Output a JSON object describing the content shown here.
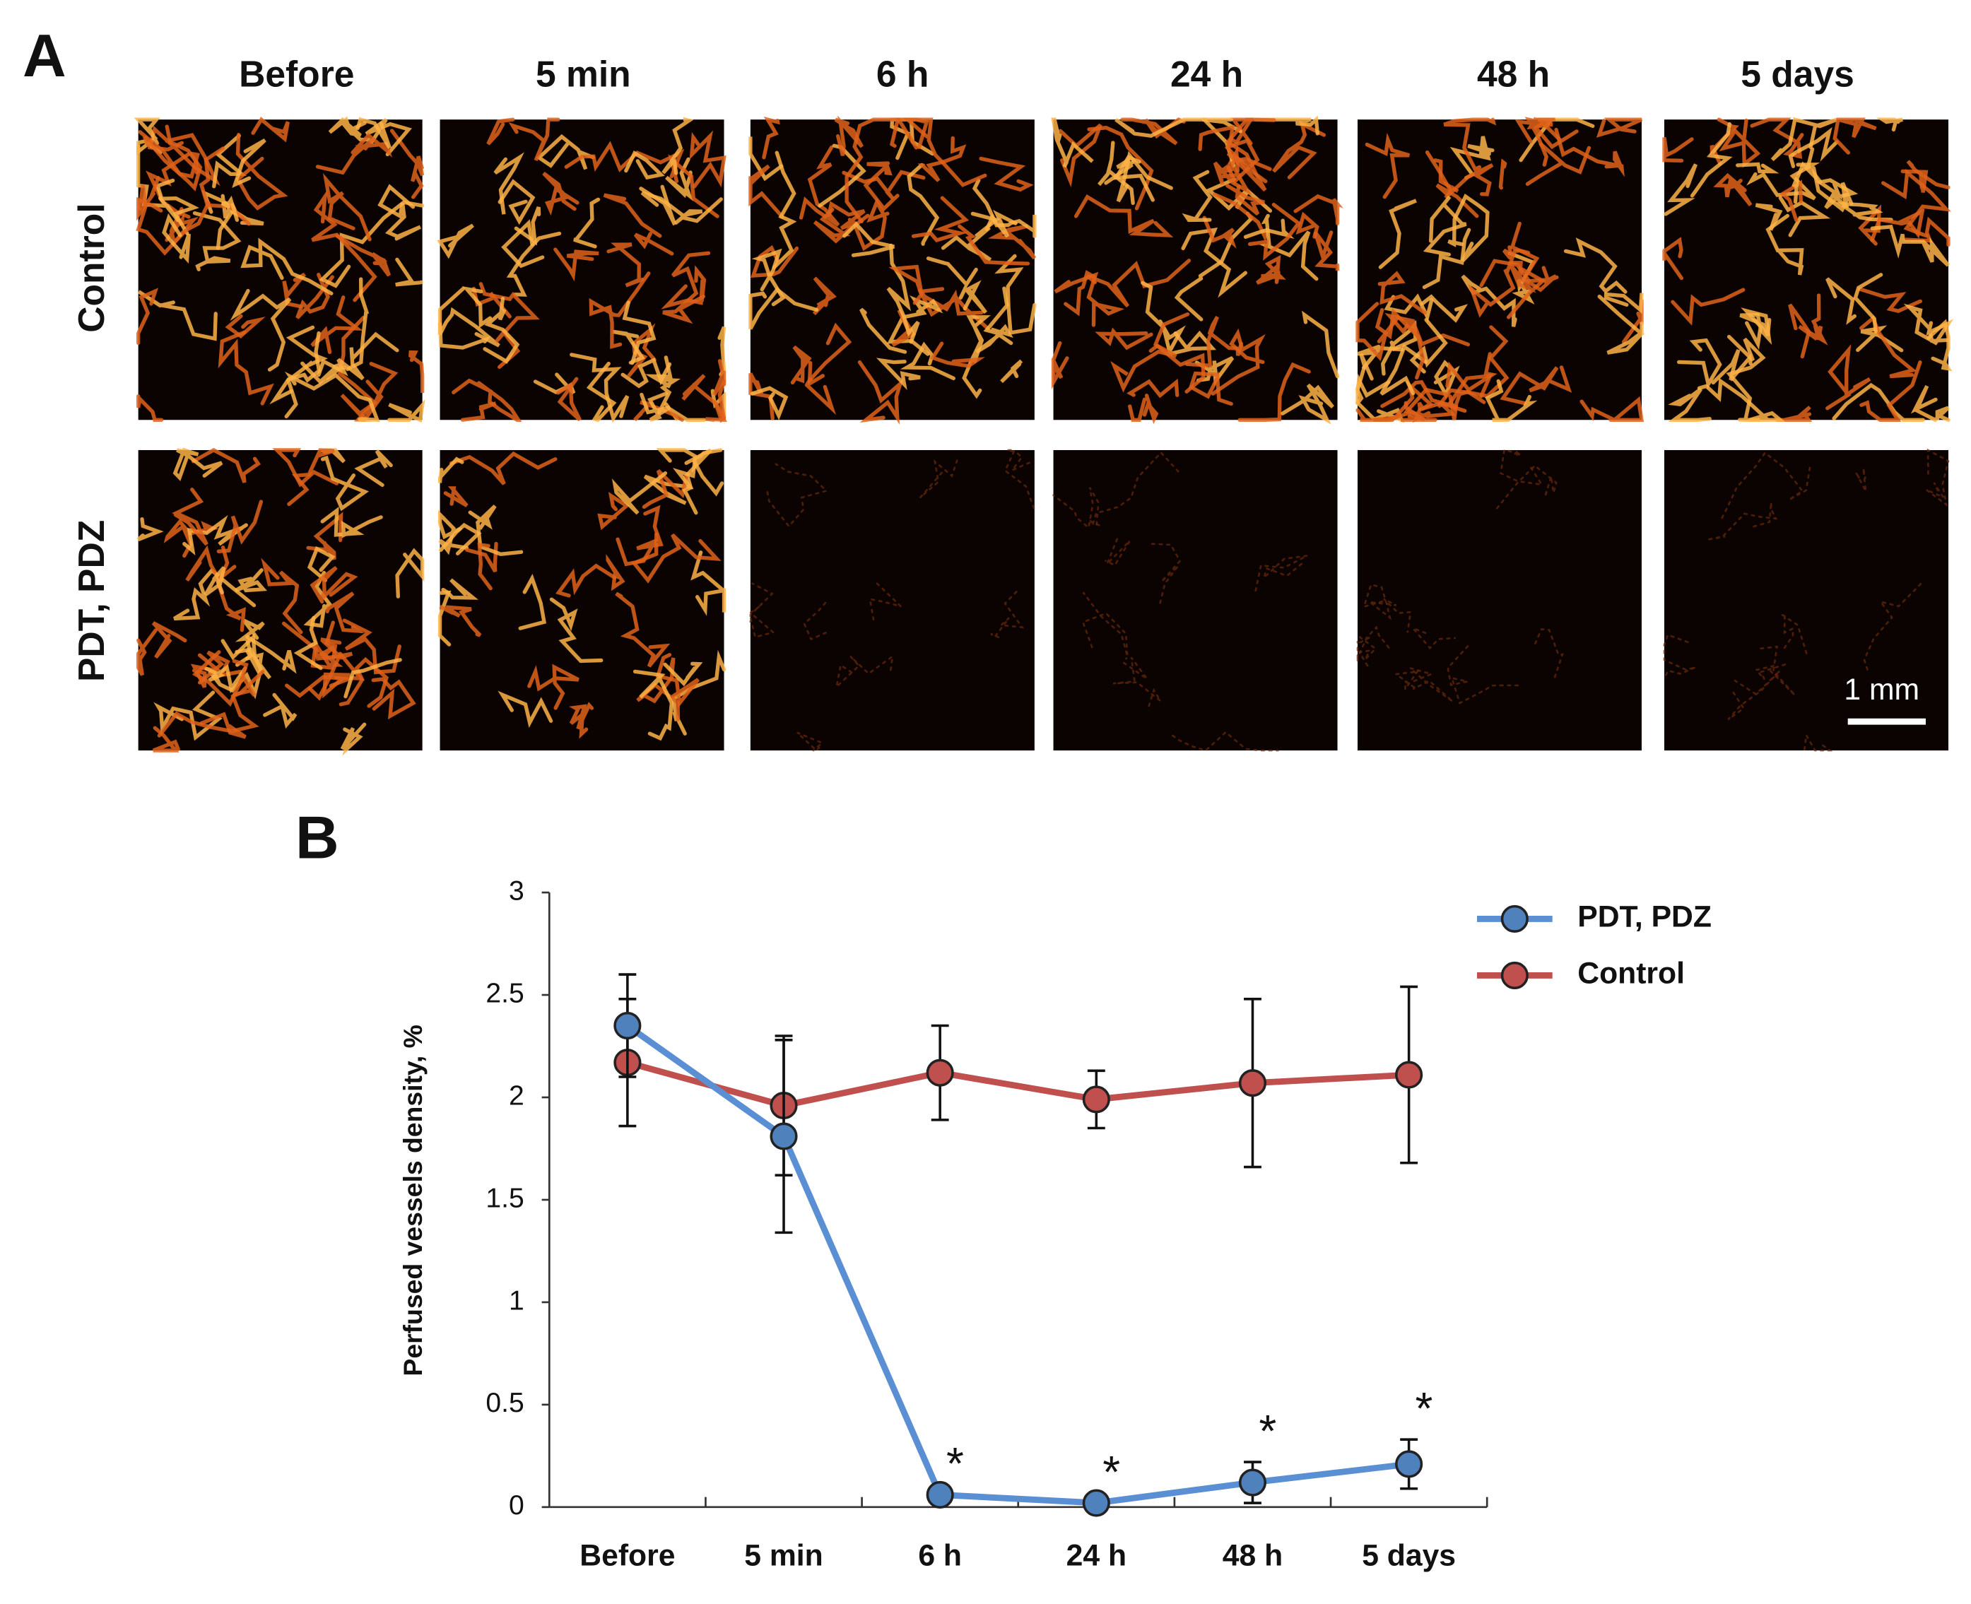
{
  "panel_a": {
    "label": "A",
    "columns": [
      "Before",
      "5 min",
      "6 h",
      "24 h",
      "48 h",
      "5 days"
    ],
    "rows": [
      "Control",
      "PDT, PDZ"
    ],
    "scale_bar": "1 mm"
  },
  "chart_data": {
    "type": "line",
    "panel_label": "B",
    "y_label": "Perfused vessels density,  %",
    "categories": [
      "Before",
      "5 min",
      "6 h",
      "24 h",
      "48 h",
      "5 days"
    ],
    "series": [
      {
        "name": "PDT, PDZ",
        "color": "#5b8fd3",
        "marker_color": "#4f81bd",
        "values": [
          2.35,
          1.81,
          0.06,
          0.02,
          0.12,
          0.21
        ],
        "errors": [
          0.25,
          0.47,
          null,
          null,
          0.1,
          0.12
        ],
        "annotations": [
          null,
          null,
          "*",
          "*",
          "*",
          "*"
        ]
      },
      {
        "name": "Control",
        "color": "#c0504d",
        "marker_color": "#c0504d",
        "values": [
          2.17,
          1.96,
          2.12,
          1.99,
          2.07,
          2.11
        ],
        "errors": [
          0.31,
          0.34,
          0.23,
          0.14,
          0.41,
          0.43
        ]
      }
    ],
    "ylim": [
      0,
      3
    ],
    "yticks": [
      0,
      0.5,
      1,
      1.5,
      2,
      2.5,
      3
    ],
    "grid": false,
    "legend": "top-right"
  }
}
